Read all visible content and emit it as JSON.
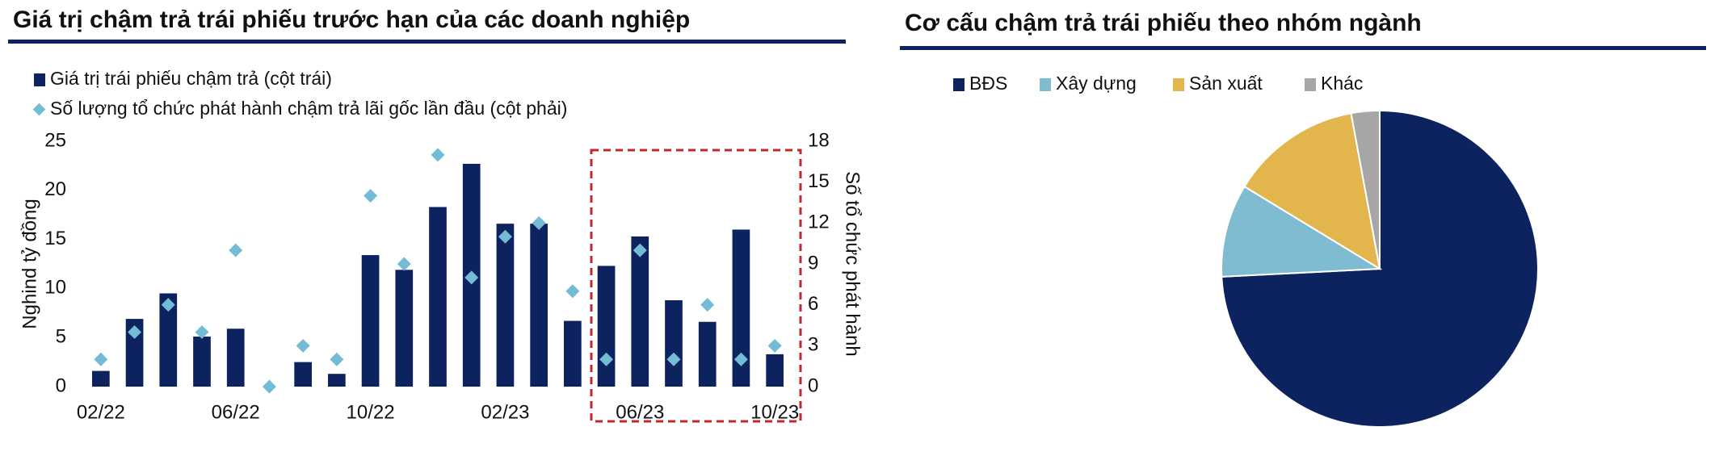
{
  "chart_data": [
    {
      "type": "bar",
      "title": "Giá trị chậm trả trái phiếu trước hạn của các doanh nghiệp",
      "y_label": "Nghind tỷ đồng",
      "y2_label": "Số tổ chức phát hành",
      "categories": [
        "02/22",
        null,
        null,
        null,
        "06/22",
        null,
        null,
        null,
        "10/22",
        null,
        null,
        null,
        "02/23",
        null,
        null,
        null,
        "06/23",
        null,
        null,
        null,
        "10/23"
      ],
      "series": [
        {
          "name": "Giá trị trái phiếu chậm trả  (cột trái)",
          "type": "bar",
          "axis": "y",
          "color": "#0d2360",
          "values": [
            1.6,
            6.9,
            9.5,
            5.1,
            5.9,
            0,
            2.5,
            1.3,
            13.4,
            11.9,
            18.3,
            22.7,
            16.6,
            16.6,
            6.7,
            12.3,
            15.3,
            8.8,
            6.6,
            16.0,
            3.3
          ]
        },
        {
          "name": "Số lượng tổ chức phát hành chậm trả lãi gốc lần đầu (cột phải)",
          "type": "scatter",
          "axis": "y2",
          "color": "#74bbd6",
          "values": [
            2,
            4,
            6,
            4,
            10,
            0,
            3,
            2,
            14,
            9,
            17,
            8,
            11,
            12,
            7,
            2,
            10,
            2,
            6,
            2,
            3
          ]
        }
      ],
      "ylim": [
        0,
        25
      ],
      "yticks": [
        0,
        5,
        10,
        15,
        20,
        25
      ],
      "y2lim": [
        0,
        18
      ],
      "y2ticks": [
        0,
        3,
        6,
        9,
        12,
        15,
        18
      ],
      "grid": false
    },
    {
      "type": "pie",
      "title": "Cơ cấu chậm trả trái phiếu theo nhóm ngành",
      "categories": [
        "BĐS",
        "Xây dựng",
        "Sản xuất",
        "Khác"
      ],
      "values": [
        74.2,
        9.5,
        13.4,
        2.9
      ],
      "colors": [
        "#0d2360",
        "#7fbcd2",
        "#e3b54d",
        "#a6a6a6"
      ]
    }
  ]
}
